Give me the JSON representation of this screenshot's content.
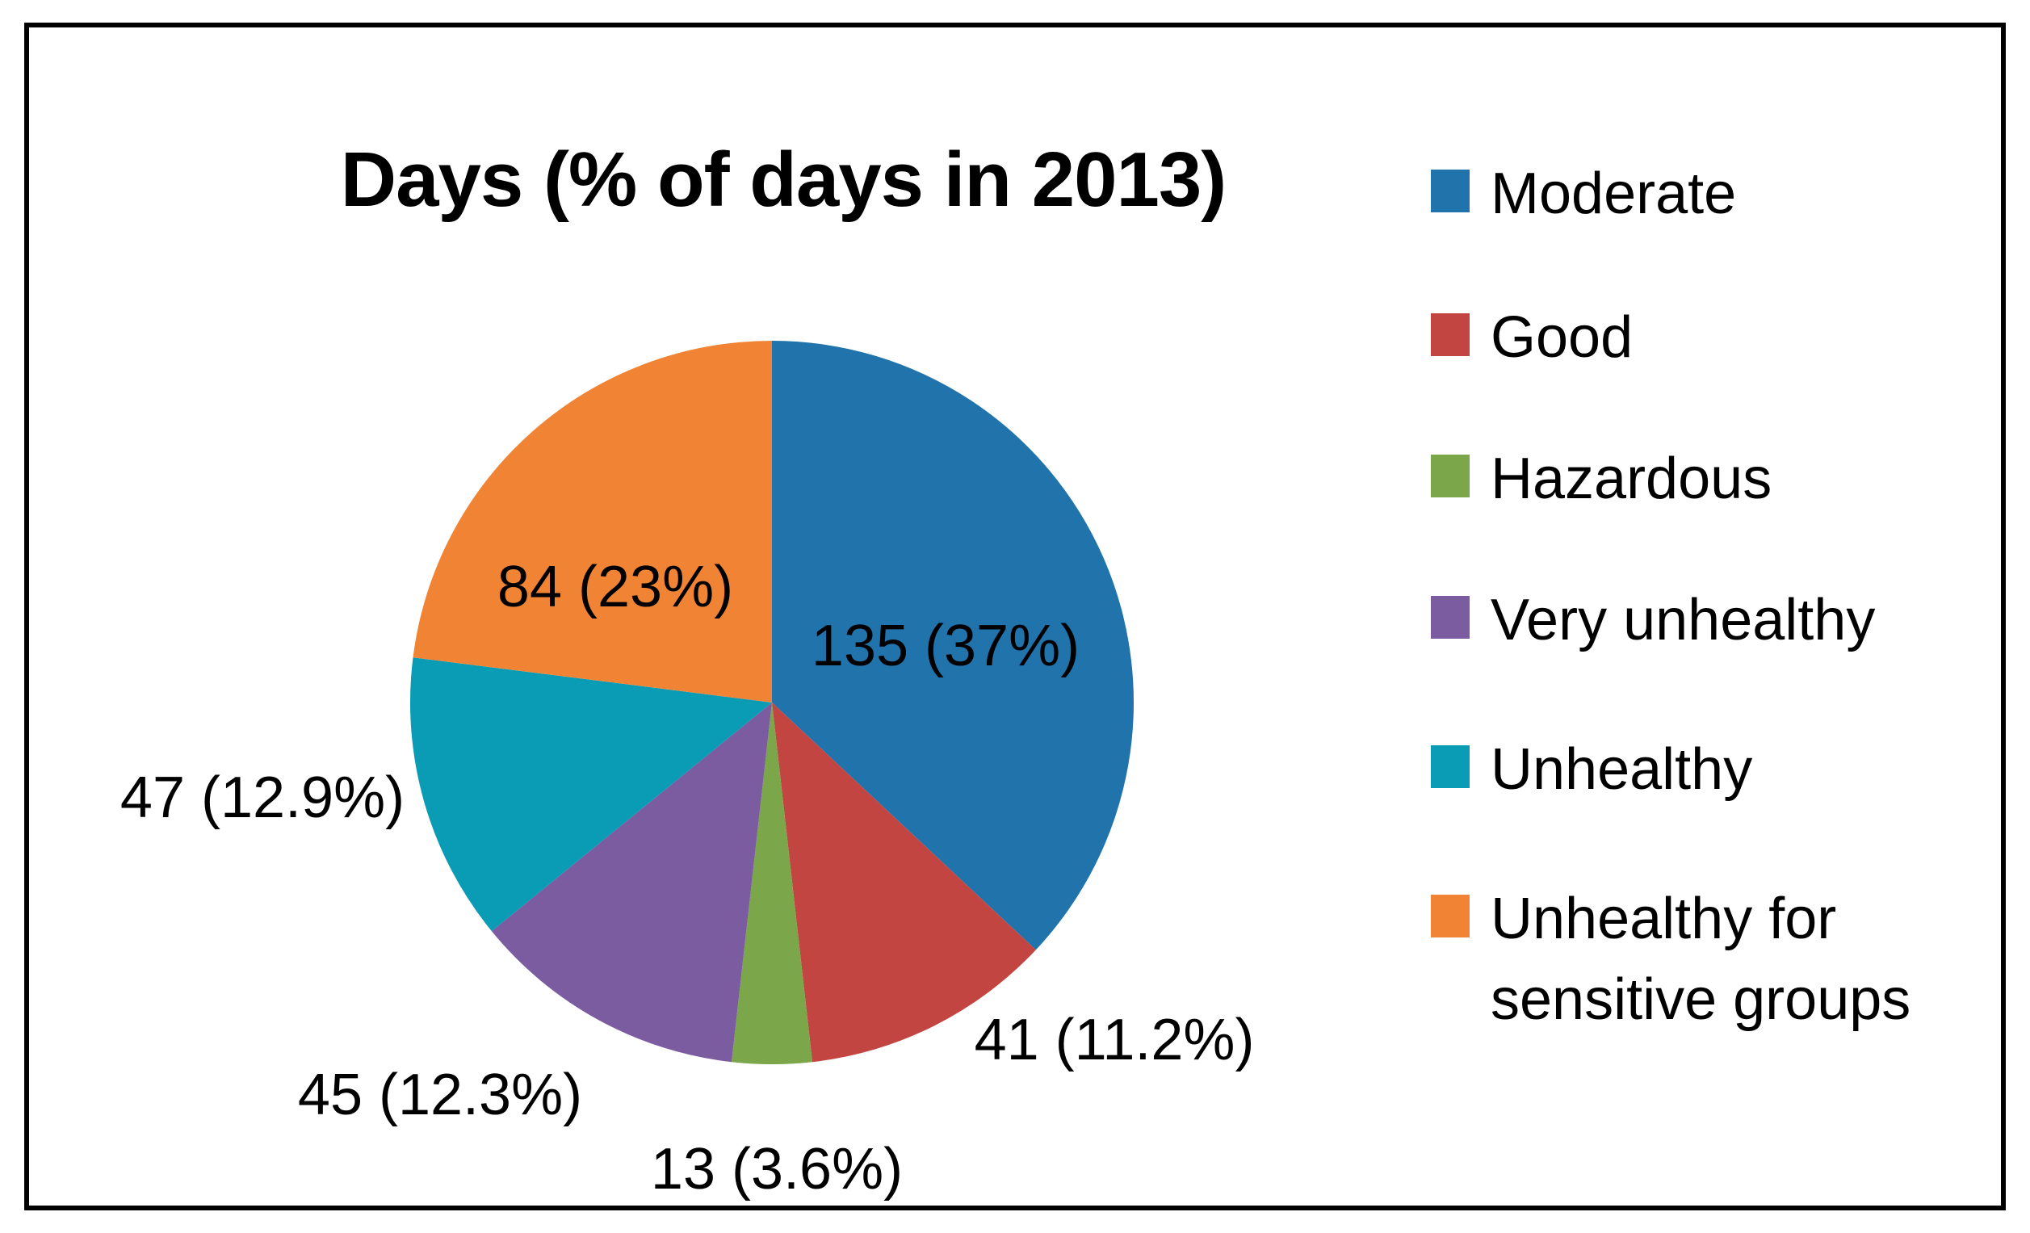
{
  "chart_data": {
    "type": "pie",
    "title": "Days (% of days in 2013)",
    "total": 365,
    "unit": "days",
    "legend_position": "right",
    "start_angle_deg": 0,
    "direction": "clockwise",
    "slices": [
      {
        "label": "Moderate",
        "value": 135,
        "percent": 37,
        "data_label": "135 (37%)",
        "color": "#2173AC"
      },
      {
        "label": "Good",
        "value": 41,
        "percent": 11.2,
        "data_label": "41 (11.2%)",
        "color": "#C24542"
      },
      {
        "label": "Hazardous",
        "value": 13,
        "percent": 3.6,
        "data_label": "13 (3.6%)",
        "color": "#7BA64A"
      },
      {
        "label": "Very unhealthy",
        "value": 45,
        "percent": 12.3,
        "data_label": "45 (12.3%)",
        "color": "#7B5CA1"
      },
      {
        "label": "Unhealthy",
        "value": 47,
        "percent": 12.9,
        "data_label": "47 (12.9%)",
        "color": "#0A9BB5"
      },
      {
        "label": "Unhealthy for sensitive groups",
        "value": 84,
        "percent": 23,
        "data_label": "84 (23%)",
        "color": "#F08334"
      }
    ]
  }
}
